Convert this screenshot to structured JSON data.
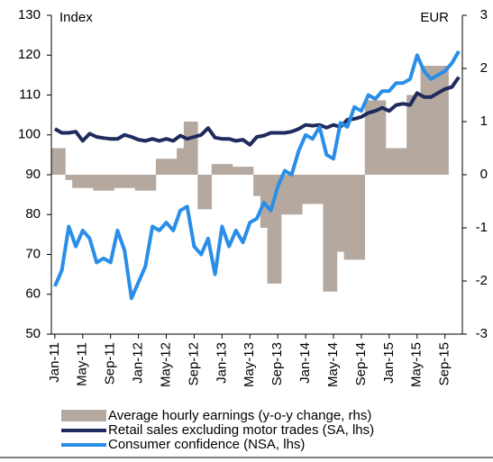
{
  "chart_data": {
    "type": "combo",
    "ylabel": "Index",
    "y2label": "EUR",
    "categories": [
      "Jan-11",
      null,
      null,
      null,
      "May-11",
      null,
      null,
      null,
      "Sep-11",
      null,
      null,
      null,
      "Jan-12",
      null,
      null,
      null,
      "May-12",
      null,
      null,
      null,
      "Sep-12",
      null,
      null,
      null,
      "Jan-13",
      null,
      null,
      null,
      "May-13",
      null,
      null,
      null,
      "Sep-13",
      null,
      null,
      null,
      "Jan-14",
      null,
      null,
      null,
      "May-14",
      null,
      null,
      null,
      "Sep-14",
      null,
      null,
      null,
      "Jan-15",
      null,
      null,
      null,
      "May-15",
      null,
      null,
      null,
      "Sep-15",
      null,
      null
    ],
    "ylim": [
      50,
      130
    ],
    "yticks": [
      50,
      60,
      70,
      80,
      90,
      100,
      110,
      120,
      130
    ],
    "y2lim": [
      -3,
      3
    ],
    "y2ticks": [
      -3,
      -2,
      -1,
      0,
      1,
      2,
      3
    ],
    "legend": "bottom",
    "series": [
      {
        "name": "Average hourly earnings (y-o-y change, rhs)",
        "type": "bar",
        "axis": "y2",
        "color": "#b5a89f",
        "values": [
          0.5,
          0.5,
          -0.1,
          -0.25,
          -0.25,
          -0.25,
          -0.3,
          -0.3,
          -0.3,
          -0.25,
          -0.25,
          -0.25,
          -0.3,
          -0.3,
          -0.3,
          0.3,
          0.3,
          0.3,
          0.5,
          1.0,
          1.0,
          -0.65,
          -0.65,
          0.2,
          0.2,
          0.2,
          0.15,
          0.15,
          0.15,
          -0.4,
          -1.0,
          -2.05,
          -2.05,
          -0.75,
          -0.75,
          -0.75,
          -0.55,
          -0.55,
          -0.55,
          -2.2,
          -2.2,
          -1.45,
          -1.6,
          -1.6,
          -1.6,
          1.4,
          1.4,
          1.4,
          0.5,
          0.5,
          0.5,
          1.5,
          1.5,
          2.05,
          2.05,
          2.05,
          2.05,
          0,
          0
        ]
      },
      {
        "name": "Retail sales excluding motor trades (SA, lhs)",
        "type": "line",
        "color": "#1f2a5e",
        "values": [
          101.5,
          100.5,
          100.5,
          100.8,
          98.5,
          100.3,
          99.5,
          99.2,
          99,
          99,
          100,
          99.5,
          98.8,
          98.5,
          99,
          98.5,
          99,
          98.5,
          99.8,
          99,
          99.5,
          100,
          101.7,
          99.3,
          99,
          99,
          98.5,
          98.8,
          97.5,
          99.5,
          99.8,
          100.5,
          100.5,
          100.5,
          100.8,
          101.5,
          102.5,
          102.3,
          102.5,
          101.8,
          102.5,
          102,
          103.8,
          104,
          104.5,
          105.5,
          106,
          106.8,
          106,
          107.5,
          107.8,
          107.5,
          110.5,
          109.5,
          109.5,
          110.5,
          111.5,
          112,
          114.5
        ]
      },
      {
        "name": "Consumer confidence (NSA, lhs)",
        "type": "line",
        "color": "#2a8ee8",
        "values": [
          62,
          66,
          77,
          72,
          76,
          74,
          68,
          69,
          68,
          76,
          71,
          59,
          63,
          67,
          77,
          76,
          78,
          76,
          81,
          82,
          72,
          70,
          74,
          65,
          77,
          72,
          76,
          73,
          78,
          79,
          83,
          81,
          87,
          91,
          90,
          96,
          100,
          99,
          102,
          95,
          94,
          103,
          102,
          107,
          106,
          110,
          109,
          111,
          111,
          113,
          113,
          114,
          120,
          116,
          114,
          115,
          116,
          118,
          121
        ]
      }
    ]
  }
}
